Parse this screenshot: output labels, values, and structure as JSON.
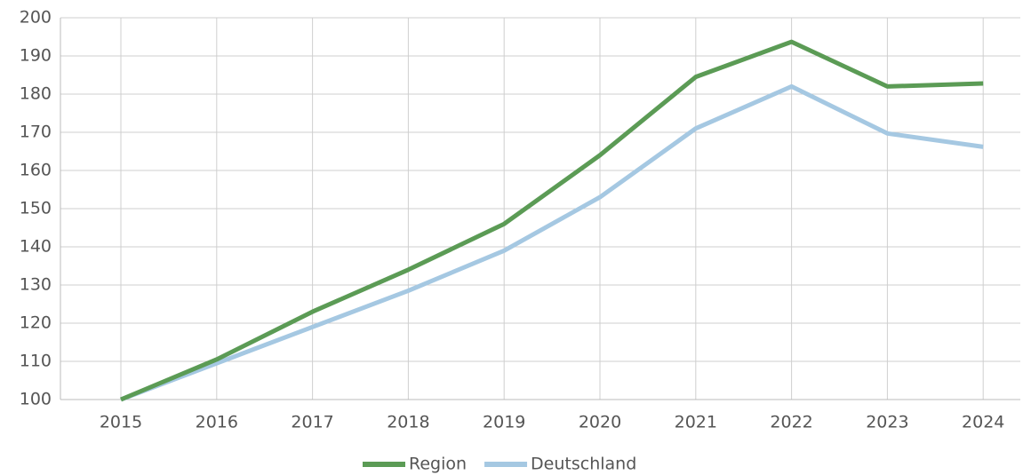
{
  "chart_data": {
    "type": "line",
    "categories": [
      "2015",
      "2016",
      "2017",
      "2018",
      "2019",
      "2020",
      "2021",
      "2022",
      "2023",
      "2024"
    ],
    "series": [
      {
        "name": "Region",
        "color": "#5b9b55",
        "values": [
          100,
          110.5,
          123,
          134,
          146,
          164,
          184.5,
          193.7,
          182,
          182.8
        ]
      },
      {
        "name": "Deutschland",
        "color": "#a5c8e2",
        "values": [
          100,
          109.5,
          119,
          128.5,
          139,
          153,
          171,
          182,
          169.7,
          166.2
        ]
      }
    ],
    "ylim": [
      100,
      200
    ],
    "yticks": [
      100,
      110,
      120,
      130,
      140,
      150,
      160,
      170,
      180,
      190,
      200
    ],
    "grid": true,
    "legend": "bottom"
  }
}
